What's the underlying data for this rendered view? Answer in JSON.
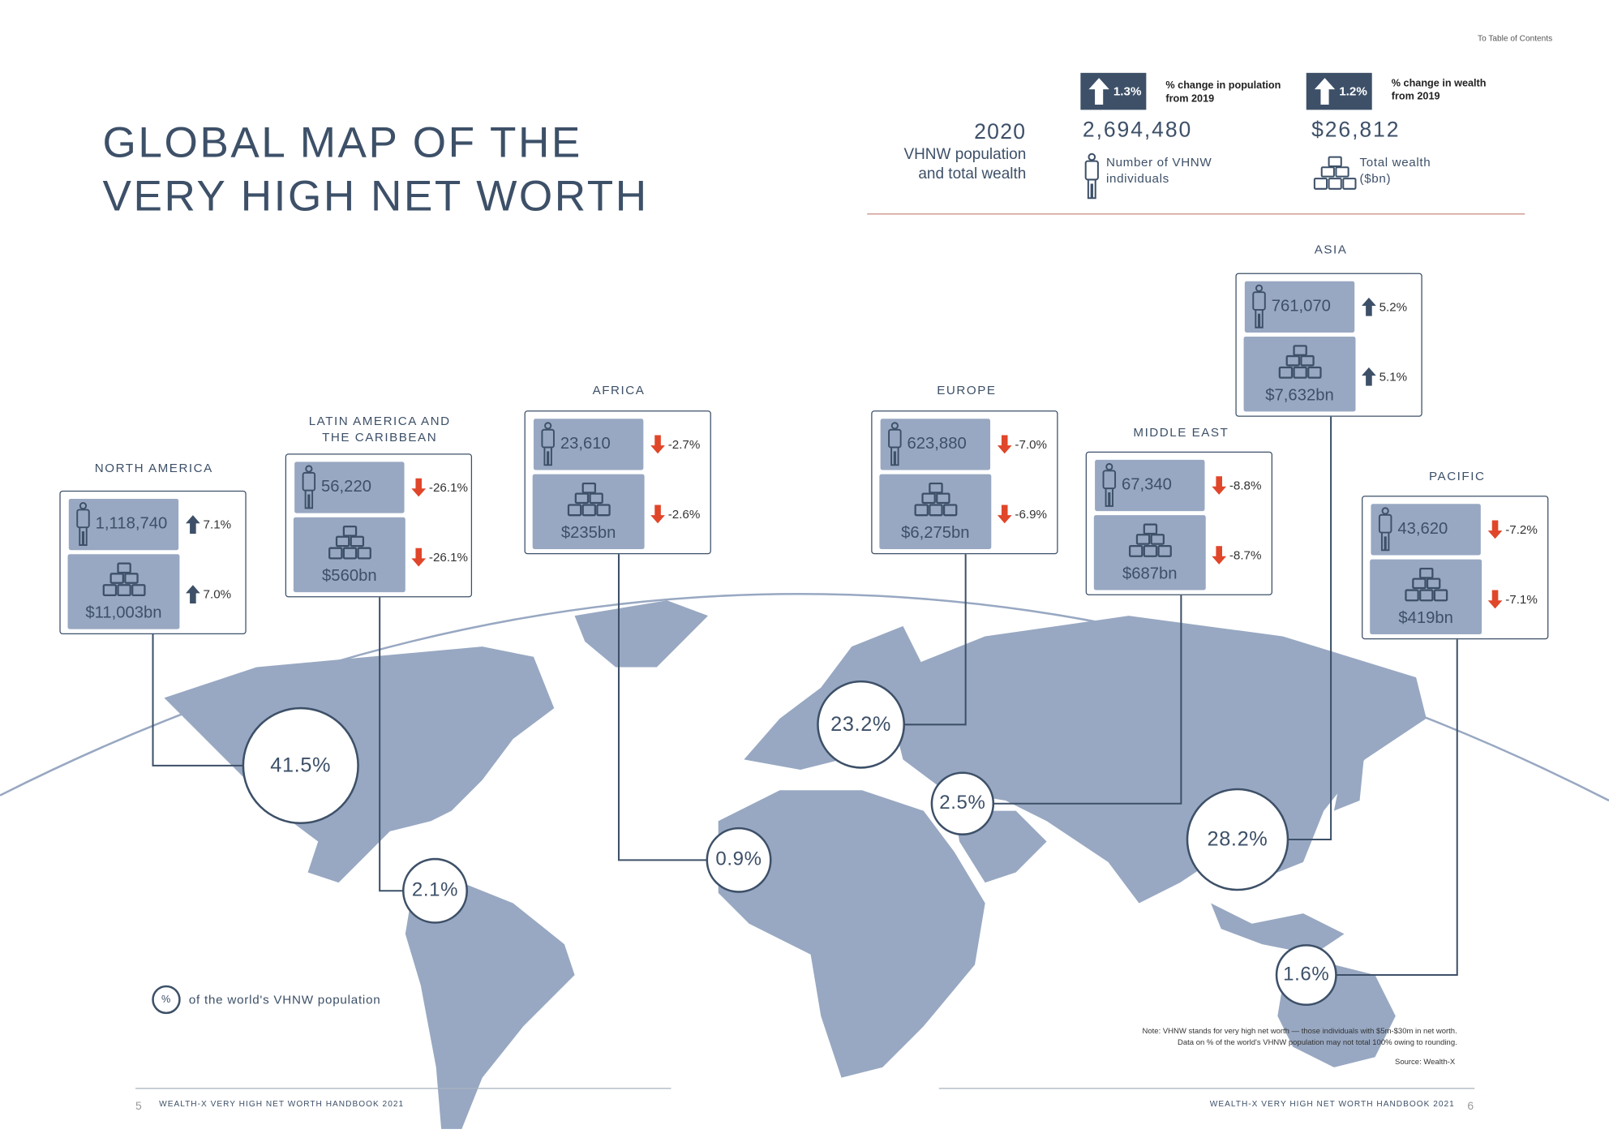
{
  "nav": {
    "toc_link": "To Table of Contents"
  },
  "title": {
    "line1": "GLOBAL MAP OF THE",
    "line2": "VERY HIGH NET WORTH"
  },
  "summary": {
    "year": "2020",
    "subtitle_line1": "VHNW population",
    "subtitle_line2": "and total wealth",
    "population": {
      "change": "1.3%",
      "change_label_line1": "% change in population",
      "change_label_line2": "from 2019",
      "value": "2,694,480",
      "desc_line1": "Number of VHNW",
      "desc_line2": "individuals"
    },
    "wealth": {
      "change": "1.2%",
      "change_label_line1": "% change in wealth",
      "change_label_line2": "from 2019",
      "value": "$26,812",
      "desc_line1": "Total wealth",
      "desc_line2": "($bn)"
    }
  },
  "regions": [
    {
      "name": "NORTH AMERICA",
      "name2": "",
      "population": "1,118,740",
      "pop_change": "7.1%",
      "pop_dir": "up",
      "wealth": "$11,003bn",
      "wealth_change": "7.0%",
      "wealth_dir": "up",
      "share": "41.5%"
    },
    {
      "name": "LATIN AMERICA AND",
      "name2": "THE CARIBBEAN",
      "population": "56,220",
      "pop_change": "-26.1%",
      "pop_dir": "down",
      "wealth": "$560bn",
      "wealth_change": "-26.1%",
      "wealth_dir": "down",
      "share": "2.1%"
    },
    {
      "name": "AFRICA",
      "name2": "",
      "population": "23,610",
      "pop_change": "-2.7%",
      "pop_dir": "down",
      "wealth": "$235bn",
      "wealth_change": "-2.6%",
      "wealth_dir": "down",
      "share": "0.9%"
    },
    {
      "name": "EUROPE",
      "name2": "",
      "population": "623,880",
      "pop_change": "-7.0%",
      "pop_dir": "down",
      "wealth": "$6,275bn",
      "wealth_change": "-6.9%",
      "wealth_dir": "down",
      "share": "23.2%"
    },
    {
      "name": "MIDDLE EAST",
      "name2": "",
      "population": "67,340",
      "pop_change": "-8.8%",
      "pop_dir": "down",
      "wealth": "$687bn",
      "wealth_change": "-8.7%",
      "wealth_dir": "down",
      "share": "2.5%"
    },
    {
      "name": "ASIA",
      "name2": "",
      "population": "761,070",
      "pop_change": "5.2%",
      "pop_dir": "up",
      "wealth": "$7,632bn",
      "wealth_change": "5.1%",
      "wealth_dir": "up",
      "share": "28.2%"
    },
    {
      "name": "PACIFIC",
      "name2": "",
      "population": "43,620",
      "pop_change": "-7.2%",
      "pop_dir": "down",
      "wealth": "$419bn",
      "wealth_change": "-7.1%",
      "wealth_dir": "down",
      "share": "1.6%"
    }
  ],
  "legend": {
    "symbol": "%",
    "label": "of the world's VHNW population"
  },
  "notes": {
    "line1": "Note: VHNW stands for very high net worth — those individuals with $5m-$30m in net worth.",
    "line2": "Data on % of the world's VHNW population may not total 100% owing to rounding.",
    "source": "Source: Wealth-X"
  },
  "footer": {
    "left_page": "5",
    "left_text": "WEALTH-X VERY HIGH NET WORTH HANDBOOK 2021",
    "right_text": "WEALTH-X VERY HIGH NET WORTH HANDBOOK 2021",
    "right_page": "6"
  },
  "colors": {
    "navy": "#3d5068",
    "land": "#98a8c2",
    "down": "#e0462a",
    "rule": "#c98b80"
  }
}
